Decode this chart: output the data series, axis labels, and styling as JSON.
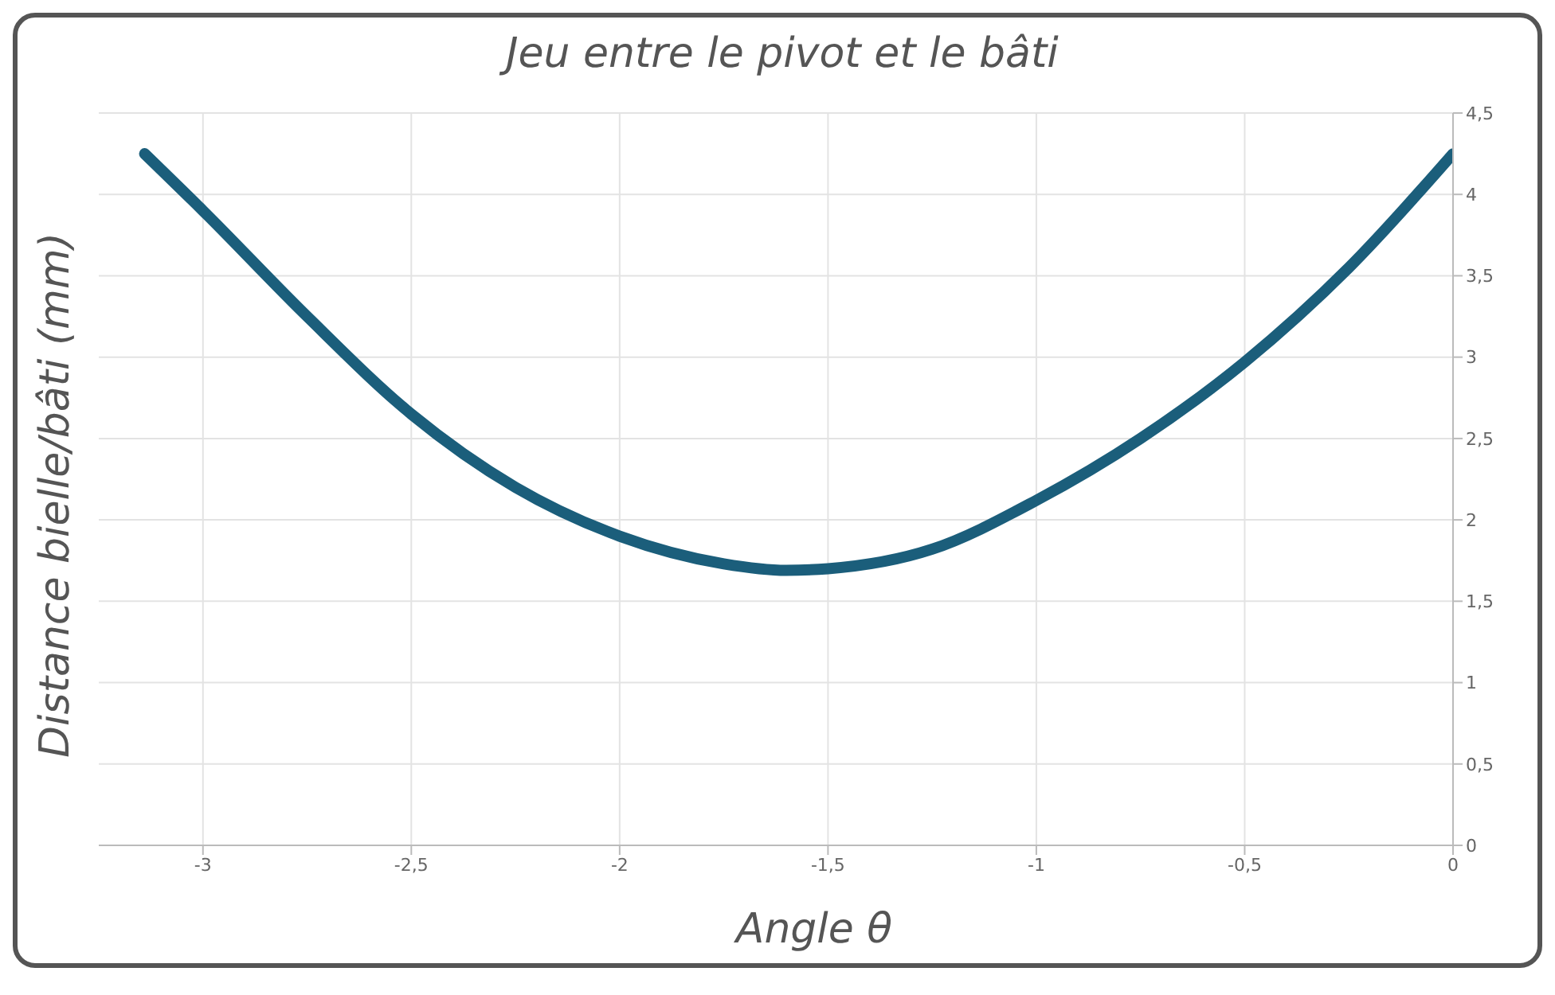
{
  "chart_data": {
    "type": "line",
    "title": "Jeu entre le pivot et le bâti",
    "xlabel": "Angle θ",
    "ylabel": "Distance bielle/bâti (mm)",
    "x": [
      -3.14,
      -3.0,
      -2.75,
      -2.5,
      -2.25,
      -2.0,
      -1.75,
      -1.6,
      -1.5,
      -1.25,
      -1.0,
      -0.75,
      -0.5,
      -0.25,
      0
    ],
    "series": [
      {
        "color": "#1b5e7b",
        "values": [
          4.25,
          3.9,
          3.25,
          2.65,
          2.2,
          1.9,
          1.73,
          1.69,
          1.7,
          1.82,
          2.12,
          2.5,
          2.97,
          3.55,
          4.25
        ]
      }
    ],
    "xlim": [
      -3.25,
      0
    ],
    "xticks": [
      -3,
      {
        "value": -2.5,
        "label": "-2,5"
      },
      -2,
      {
        "value": -1.5,
        "label": "-1,5"
      },
      -1,
      {
        "value": -0.5,
        "label": "-0,5"
      },
      0
    ],
    "ylim": [
      0,
      4.5
    ],
    "yticks": [
      0,
      {
        "value": 0.5,
        "label": "0,5"
      },
      1,
      {
        "value": 1.5,
        "label": "1,5"
      },
      2,
      {
        "value": 2.5,
        "label": "2,5"
      },
      3,
      {
        "value": 3.5,
        "label": "3,5"
      },
      4,
      {
        "value": 4.5,
        "label": "4,5"
      }
    ],
    "grid": true,
    "marker": "none",
    "line_style": "solid"
  }
}
